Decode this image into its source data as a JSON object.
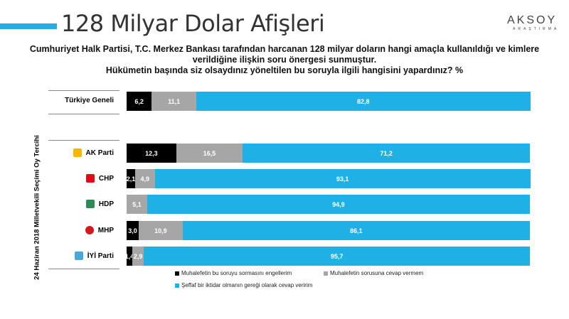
{
  "header": {
    "title": "128 Milyar Dolar Afişleri",
    "logo": "AKSOY",
    "logo_sub": "ARAŞTIRMA"
  },
  "subtitle": [
    "Cumhuriyet Halk Partisi, T.C. Merkez Bankası tarafından harcanan 128 milyar doların hangi amaçla kullanıldığı ve kimlere",
    "verildiğine ilişkin soru önergesi sunmuştur.",
    "Hükümetin başında siz olsaydınız yöneltilen bu soruyla ilgili hangisini yapardınız? %"
  ],
  "chart_data": {
    "type": "bar",
    "orientation": "horizontal",
    "stacked": true,
    "xlim": [
      0,
      100
    ],
    "ylabel": "24 Haziran 2018 Milletvekili Seçimi Oy Tercihi",
    "categories": [
      "Türkiye Geneli",
      "AK Parti",
      "CHP",
      "HDP",
      "MHP",
      "İYİ Parti"
    ],
    "series": [
      {
        "name": "Muhalefetin bu soruyu sormasını engellerim",
        "color": "#000000",
        "values": [
          6.2,
          12.3,
          2.1,
          0,
          3.0,
          1.4
        ],
        "labels": [
          "6,2",
          "12,3",
          "2,1",
          "",
          "3,0",
          "1,4"
        ]
      },
      {
        "name": "Muhalefetin sorusuna cevap vermem",
        "color": "#a6a6a6",
        "values": [
          11.1,
          16.5,
          4.9,
          5.1,
          10.9,
          2.9
        ],
        "labels": [
          "11,1",
          "16,5",
          "4,9",
          "5,1",
          "10,9",
          "2,9"
        ]
      },
      {
        "name": "Şeffaf bir iktidar olmanın gereği olarak cevap veririm",
        "color": "#1fb1e6",
        "values": [
          82.8,
          71.2,
          93.1,
          94.9,
          86.1,
          95.7
        ],
        "labels": [
          "82,8",
          "71,2",
          "93,1",
          "94,9",
          "86,1",
          "95,7"
        ]
      }
    ],
    "legend": "bottom"
  }
}
